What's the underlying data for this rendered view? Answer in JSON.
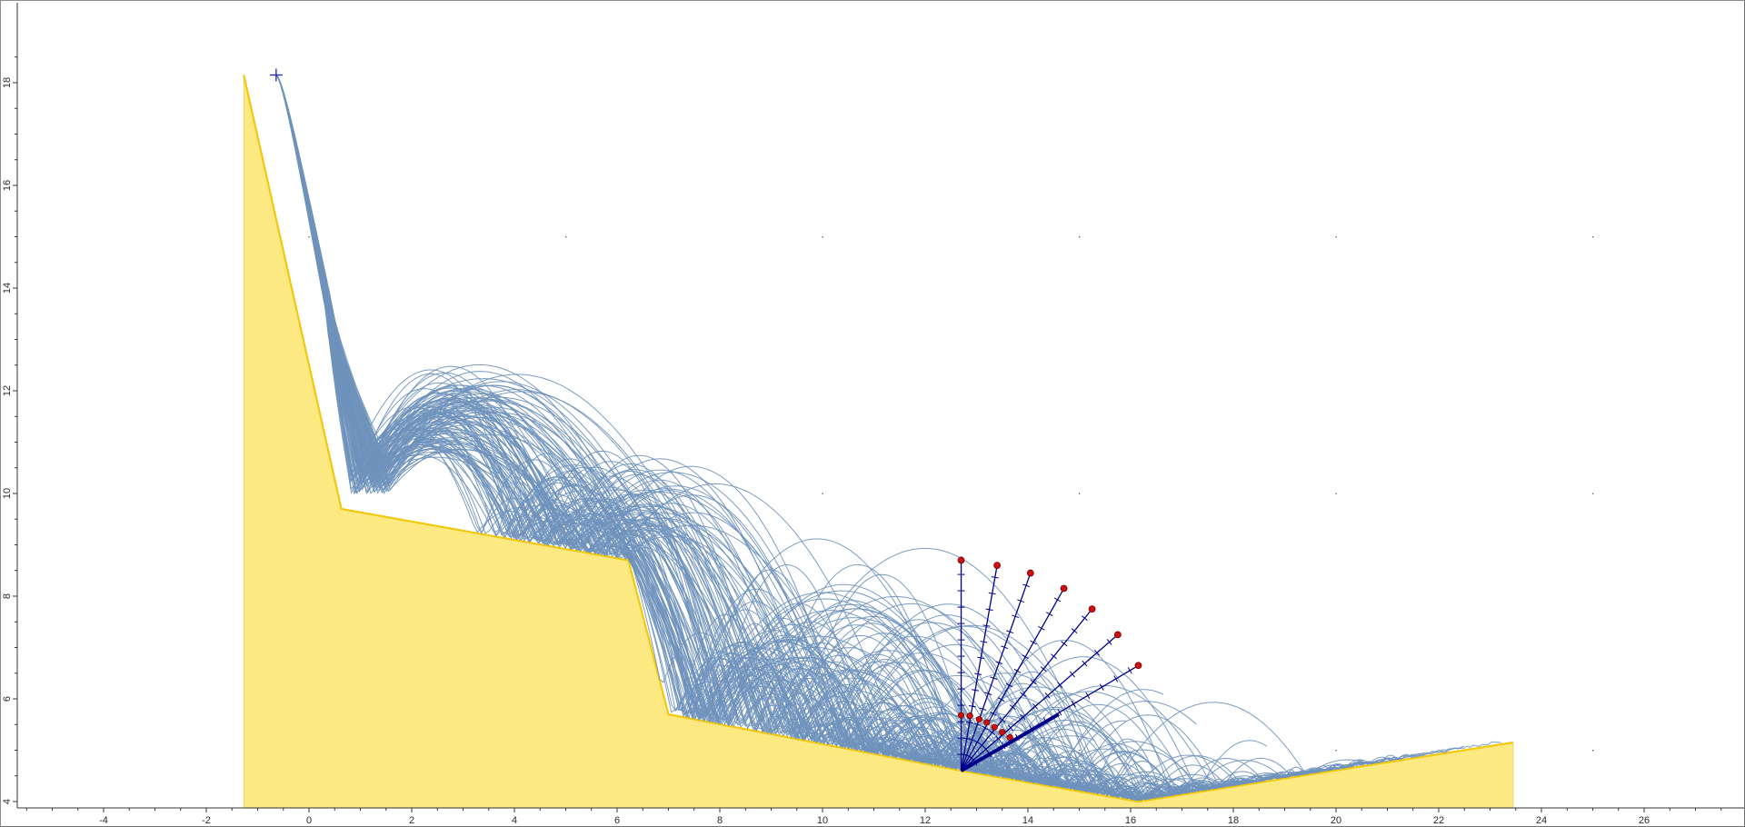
{
  "chart_data": {
    "type": "line",
    "title": "",
    "xlabel": "",
    "ylabel": "",
    "xlim": [
      -5.8,
      28.0
    ],
    "ylim": [
      3.26,
      19.0
    ],
    "grid": "dots",
    "x_ticks": [
      -4,
      -2,
      0,
      2,
      4,
      6,
      8,
      10,
      12,
      14,
      16,
      18,
      20,
      22,
      24,
      26
    ],
    "y_ticks": [
      4,
      6,
      8,
      10,
      12,
      14,
      16,
      18
    ],
    "x_tick_labels": [
      "-4",
      "-2",
      "0",
      "2",
      "4",
      "6",
      "8",
      "10",
      "12",
      "14",
      "16",
      "18",
      "20",
      "22",
      "24",
      "26"
    ],
    "y_tick_labels": [
      "4",
      "6",
      "8",
      "10",
      "12",
      "14",
      "16",
      "18"
    ],
    "colors": {
      "slope_fill": "#fde982",
      "slope_edge": "#f2c80f",
      "trajectory": "#6f92bb",
      "barrier": "#00008b",
      "marker": "#cc1010",
      "seeder": "#2020cc"
    },
    "slope_profile": {
      "x": [
        -1.27,
        0.63,
        6.22,
        7.0,
        12.7,
        16.15,
        23.45
      ],
      "y": [
        18.15,
        9.7,
        8.7,
        5.7,
        4.6,
        4.0,
        5.15
      ]
    },
    "seeder": {
      "x": -0.64,
      "y": 18.15
    },
    "collector": {
      "pivot": {
        "x": 12.7,
        "y": 4.6
      },
      "rays": [
        {
          "angle_deg": 90,
          "marker": {
            "x": 12.7,
            "y": 8.7
          },
          "low_marker": {
            "x": 12.7,
            "y": 5.68
          }
        },
        {
          "angle_deg": 80,
          "marker": {
            "x": 13.4,
            "y": 8.6
          },
          "low_marker": {
            "x": 12.87,
            "y": 5.67
          }
        },
        {
          "angle_deg": 70,
          "marker": {
            "x": 14.05,
            "y": 8.45
          },
          "low_marker": {
            "x": 13.05,
            "y": 5.6
          }
        },
        {
          "angle_deg": 60,
          "marker": {
            "x": 14.7,
            "y": 8.15
          },
          "low_marker": {
            "x": 13.2,
            "y": 5.54
          }
        },
        {
          "angle_deg": 50,
          "marker": {
            "x": 15.25,
            "y": 7.75
          },
          "low_marker": {
            "x": 13.35,
            "y": 5.45
          }
        },
        {
          "angle_deg": 40,
          "marker": {
            "x": 15.75,
            "y": 7.25
          },
          "low_marker": {
            "x": 13.5,
            "y": 5.35
          }
        },
        {
          "angle_deg": 30,
          "marker": {
            "x": 16.15,
            "y": 6.65
          },
          "low_marker": {
            "x": 13.65,
            "y": 5.25
          }
        }
      ],
      "barrier_end": {
        "x": 14.6,
        "y": 5.7
      }
    },
    "trajectories": {
      "count": 120,
      "release": {
        "x": -0.64,
        "y": 18.15
      },
      "first_impact": {
        "x": 0.35,
        "y": 13.8
      },
      "first_bounce_zone_x": [
        0.8,
        1.6
      ],
      "bench_1_apex_range_y": [
        10.0,
        12.2
      ],
      "bench_2_landing_x": [
        8.0,
        12.5
      ],
      "runout_max_x": [
        21.0,
        23.2
      ],
      "runout_y_range": [
        4.6,
        5.6
      ]
    }
  }
}
